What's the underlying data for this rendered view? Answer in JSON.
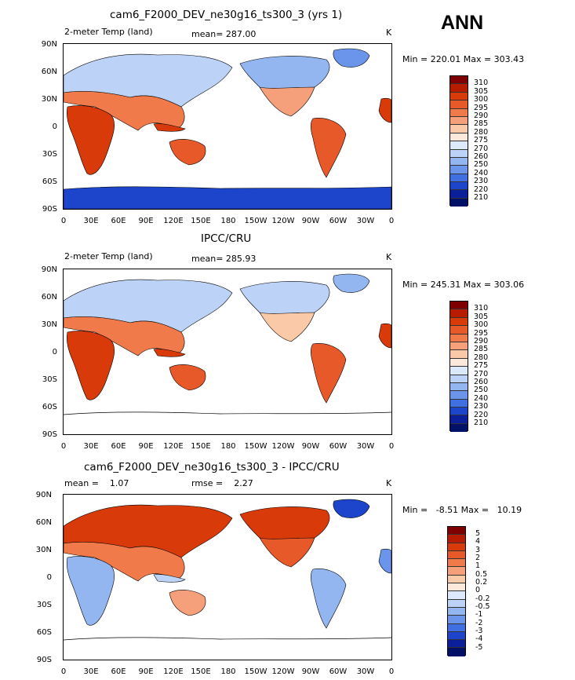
{
  "season": "ANN",
  "panels": [
    {
      "title": "cam6_F2000_DEV_ne30g16_ts300_3 (yrs 1)",
      "left_text": "2-meter Temp (land)",
      "center_text": "mean= 287.00",
      "units": "K",
      "minmax": "Min = 220.01 Max = 303.43",
      "colorbar_labels": [
        "310",
        "305",
        "300",
        "295",
        "290",
        "285",
        "280",
        "275",
        "270",
        "260",
        "250",
        "240",
        "230",
        "220",
        "210"
      ]
    },
    {
      "title": "IPCC/CRU",
      "left_text": "2-meter Temp (land)",
      "center_text": "mean= 285.93",
      "units": "K",
      "minmax": "Min = 245.31 Max = 303.06",
      "colorbar_labels": [
        "310",
        "305",
        "300",
        "295",
        "290",
        "285",
        "280",
        "275",
        "270",
        "260",
        "250",
        "240",
        "230",
        "220",
        "210"
      ]
    },
    {
      "title": "cam6_F2000_DEV_ne30g16_ts300_3 - IPCC/CRU",
      "left_text": "mean =    1.07",
      "center_text": "rmse =    2.27",
      "units": "K",
      "minmax": "Min =   -8.51 Max =   10.19",
      "colorbar_labels": [
        "5",
        "4",
        "3",
        "2",
        "1",
        "0.5",
        "0.2",
        "0",
        "-0.2",
        "-0.5",
        "-1",
        "-2",
        "-3",
        "-4",
        "-5"
      ]
    }
  ],
  "lat_ticks": [
    "90N",
    "60N",
    "30N",
    "0",
    "30S",
    "60S",
    "90S"
  ],
  "lon_ticks": [
    "0",
    "30E",
    "60E",
    "90E",
    "120E",
    "150E",
    "180",
    "150W",
    "120W",
    "90W",
    "60W",
    "30W",
    "0"
  ],
  "colors": {
    "abs_scale": [
      "#7f0000",
      "#b81c00",
      "#d93a0a",
      "#e8592a",
      "#f07a4a",
      "#f5a07a",
      "#f9c9a8",
      "#fde9dc",
      "#dce8fb",
      "#bcd3f7",
      "#93b6f1",
      "#6a95ea",
      "#3f6fe0",
      "#1c45cc",
      "#0a1f99",
      "#001066"
    ],
    "diff_scale": [
      "#7f0000",
      "#b81c00",
      "#d93a0a",
      "#e8592a",
      "#f07a4a",
      "#f5a07a",
      "#f9c9a8",
      "#fde9dc",
      "#dce8fb",
      "#bcd3f7",
      "#93b6f1",
      "#6a95ea",
      "#3f6fe0",
      "#1c45cc",
      "#0a1f99",
      "#001066"
    ]
  }
}
